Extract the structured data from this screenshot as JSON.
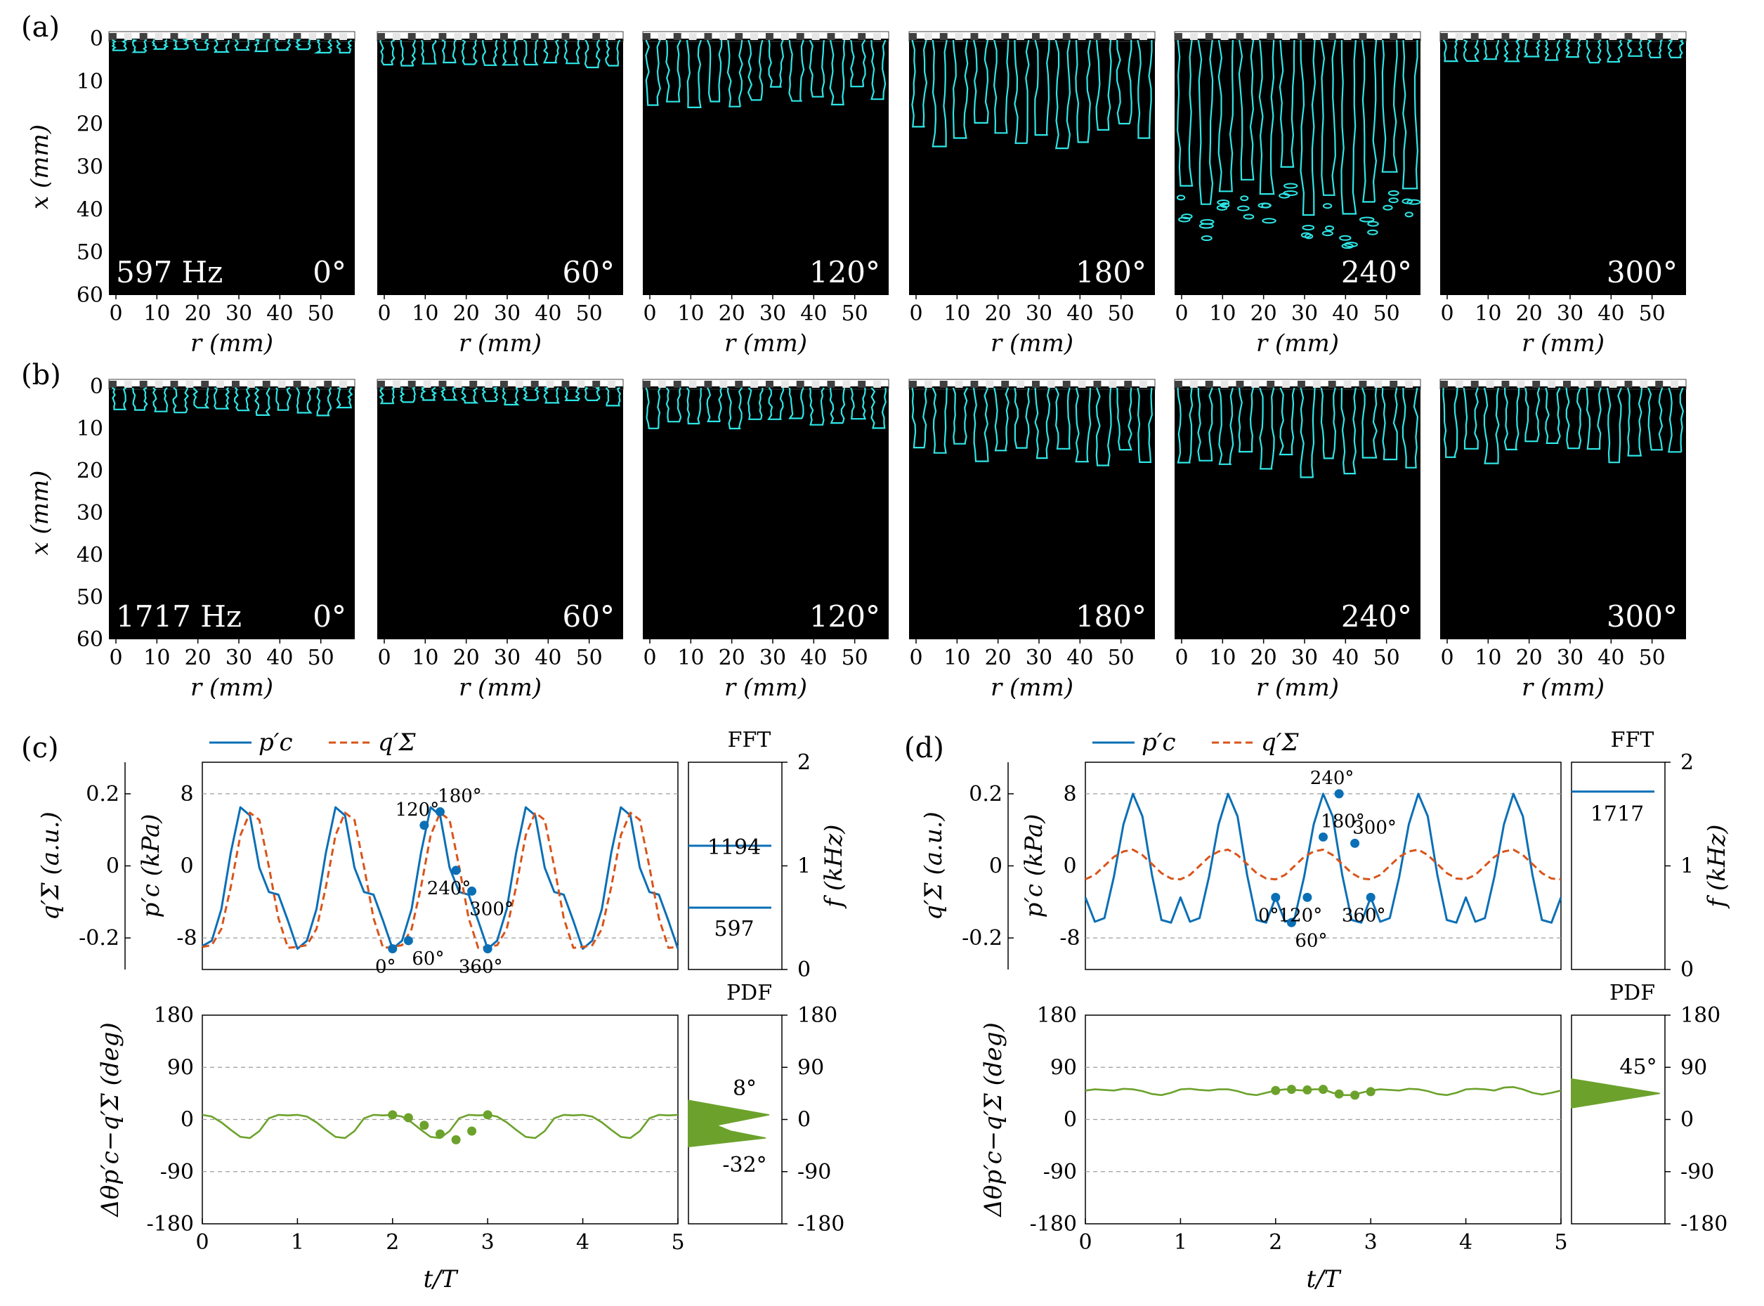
{
  "figure": {
    "panel_labels": [
      "(a)",
      "(b)",
      "(c)",
      "(d)"
    ]
  },
  "flame_rows": [
    {
      "panel": "(a)",
      "frequency_label": "597 Hz",
      "phases": [
        "0°",
        "60°",
        "120°",
        "180°",
        "240°",
        "300°"
      ],
      "flame_length_mm": [
        3,
        6,
        14,
        24,
        36,
        5
      ],
      "y_axis_label": "x (mm)",
      "x_axis_label": "r (mm)",
      "x_ticks": [
        "0",
        "10",
        "20",
        "30",
        "40",
        "50"
      ],
      "y_ticks": [
        "0",
        "10",
        "20",
        "30",
        "40",
        "50",
        "60"
      ]
    },
    {
      "panel": "(b)",
      "frequency_label": "1717 Hz",
      "phases": [
        "0°",
        "60°",
        "120°",
        "180°",
        "240°",
        "300°"
      ],
      "flame_length_mm": [
        6,
        4,
        9,
        17,
        19,
        16
      ],
      "y_axis_label": "x (mm)",
      "x_axis_label": "r (mm)",
      "x_ticks": [
        "0",
        "10",
        "20",
        "30",
        "40",
        "50"
      ],
      "y_ticks": [
        "0",
        "10",
        "20",
        "30",
        "40",
        "50",
        "60"
      ]
    }
  ],
  "colors": {
    "flame_edge": "#2ee6e6",
    "p_line": "#0b6fb6",
    "q_line": "#d9541a",
    "phase_line": "#6ca22c",
    "grid": "#9e9e9e",
    "background_black": "#000000"
  },
  "chart_data": [
    {
      "panel": "(c)",
      "type": "line",
      "legend": [
        "p′c",
        "q′Σ"
      ],
      "x_label": "t/T",
      "x_range": [
        0,
        5
      ],
      "x_ticks": [
        "0",
        "1",
        "2",
        "3",
        "4",
        "5"
      ],
      "y_left_outer_label": "q′Σ (a.u.)",
      "y_left_outer_ticks": [
        "0.2",
        "0",
        "-0.2"
      ],
      "y_left_label": "p′c (kPa)",
      "y_left_range": [
        -11.5,
        11.5
      ],
      "y_left_ticks": [
        "8",
        "0",
        "-8"
      ],
      "grid_dashed_at": [
        8,
        -8
      ],
      "series": [
        {
          "name": "p′c",
          "style": "solid",
          "x": [
            0,
            0.1,
            0.2,
            0.3,
            0.4,
            0.5,
            0.6,
            0.7,
            0.8,
            0.9,
            1.0,
            1.1,
            1.2,
            1.3,
            1.4,
            1.5,
            1.6,
            1.7,
            1.8,
            1.9,
            2.0,
            2.1,
            2.2,
            2.3,
            2.4,
            2.5,
            2.6,
            2.7,
            2.8,
            2.9,
            3.0,
            3.1,
            3.2,
            3.3,
            3.4,
            3.5,
            3.6,
            3.7,
            3.8,
            3.9,
            4.0,
            4.1,
            4.2,
            4.3,
            4.4,
            4.5,
            4.6,
            4.7,
            4.8,
            4.9,
            5.0
          ],
          "values": [
            -8.9,
            -8.3,
            -4.8,
            1.5,
            6.5,
            5.6,
            -0.2,
            -2.9,
            -3.2,
            -6.1,
            -9.2,
            -8.3,
            -4.8,
            1.5,
            6.5,
            5.6,
            -0.2,
            -2.9,
            -3.2,
            -6.1,
            -9.2,
            -8.3,
            -4.8,
            1.5,
            6.5,
            5.6,
            -0.2,
            -2.9,
            -3.2,
            -6.1,
            -9.2,
            -8.3,
            -4.8,
            1.5,
            6.5,
            5.6,
            -0.2,
            -2.9,
            -3.2,
            -6.1,
            -9.2,
            -8.3,
            -4.8,
            1.5,
            6.5,
            5.6,
            -0.2,
            -2.9,
            -3.2,
            -6.1,
            -9.2
          ]
        },
        {
          "name": "q′Σ",
          "style": "dashed",
          "x": [
            0,
            0.1,
            0.2,
            0.3,
            0.4,
            0.5,
            0.6,
            0.7,
            0.8,
            0.9,
            1.0,
            1.1,
            1.2,
            1.3,
            1.4,
            1.5,
            1.6,
            1.7,
            1.8,
            1.9,
            2.0,
            2.1,
            2.2,
            2.3,
            2.4,
            2.5,
            2.6,
            2.7,
            2.8,
            2.9,
            3.0,
            3.1,
            3.2,
            3.3,
            3.4,
            3.5,
            3.6,
            3.7,
            3.8,
            3.9,
            4.0,
            4.1,
            4.2,
            4.3,
            4.4,
            4.5,
            4.6,
            4.7,
            4.8,
            4.9,
            5.0
          ],
          "values": [
            -9.0,
            -8.8,
            -7.0,
            -2.3,
            3.4,
            5.9,
            5.1,
            -0.1,
            -5.8,
            -9.1,
            -9.0,
            -8.8,
            -7.0,
            -2.3,
            3.4,
            5.9,
            5.1,
            -0.1,
            -5.8,
            -9.1,
            -9.0,
            -8.8,
            -7.0,
            -2.3,
            3.4,
            5.9,
            5.1,
            -0.1,
            -5.8,
            -9.1,
            -9.0,
            -8.8,
            -7.0,
            -2.3,
            3.4,
            5.9,
            5.1,
            -0.1,
            -5.8,
            -9.1,
            -9.0,
            -8.8,
            -7.0,
            -2.3,
            3.4,
            5.9,
            5.1,
            -0.1,
            -5.8,
            -9.1,
            -9.0
          ]
        }
      ],
      "phase_markers": {
        "x": [
          2.0,
          2.167,
          2.333,
          2.5,
          2.667,
          2.833,
          3.0
        ],
        "labels": [
          "0°",
          "60°",
          "120°",
          "180°",
          "240°",
          "300°",
          "360°"
        ],
        "values": [
          -9.2,
          -8.3,
          4.5,
          6.0,
          -0.5,
          -2.8,
          -9.2
        ]
      },
      "fft": {
        "title": "FFT",
        "y_label": "f (kHz)",
        "y_range": [
          0,
          2
        ],
        "y_ticks": [
          "0",
          "1",
          "2"
        ],
        "peaks_hz": [
          597,
          1194
        ],
        "peak_labels": [
          "597",
          "1194"
        ]
      },
      "phase_difference": {
        "y_label": "Δθp′c−q′Σ (deg)",
        "y_range": [
          -180,
          180
        ],
        "y_ticks": [
          "180",
          "90",
          "0",
          "-90",
          "-180"
        ],
        "grid_dashed_at": [
          90,
          0,
          -90
        ],
        "series_name": "",
        "x": [
          0,
          0.1,
          0.2,
          0.3,
          0.4,
          0.5,
          0.6,
          0.7,
          0.8,
          0.9,
          1.0,
          1.1,
          1.2,
          1.3,
          1.4,
          1.5,
          1.6,
          1.7,
          1.8,
          1.9,
          2.0,
          2.1,
          2.2,
          2.3,
          2.4,
          2.5,
          2.6,
          2.7,
          2.8,
          2.9,
          3.0,
          3.1,
          3.2,
          3.3,
          3.4,
          3.5,
          3.6,
          3.7,
          3.8,
          3.9,
          4.0,
          4.1,
          4.2,
          4.3,
          4.4,
          4.5,
          4.6,
          4.7,
          4.8,
          4.9,
          5.0
        ],
        "values": [
          8,
          5,
          -5,
          -18,
          -30,
          -32,
          -20,
          2,
          8,
          7,
          8,
          5,
          -5,
          -18,
          -30,
          -32,
          -20,
          2,
          8,
          7,
          8,
          5,
          -5,
          -18,
          -30,
          -32,
          -20,
          2,
          8,
          7,
          8,
          5,
          -5,
          -18,
          -30,
          -32,
          -20,
          2,
          8,
          7,
          8,
          5,
          -5,
          -18,
          -30,
          -32,
          -20,
          2,
          8,
          7,
          8
        ],
        "marker_x": [
          2.0,
          2.167,
          2.333,
          2.5,
          2.667,
          2.833,
          3.0
        ],
        "marker_values": [
          8,
          3,
          -10,
          -25,
          -35,
          -20,
          8
        ],
        "pdf": {
          "title": "PDF",
          "peak_labels": [
            "8°",
            "-32°"
          ],
          "peaks_deg": [
            8,
            -32
          ]
        }
      }
    },
    {
      "panel": "(d)",
      "type": "line",
      "legend": [
        "p′c",
        "q′Σ"
      ],
      "x_label": "t/T",
      "x_range": [
        0,
        5
      ],
      "x_ticks": [
        "0",
        "1",
        "2",
        "3",
        "4",
        "5"
      ],
      "y_left_outer_label": "q′Σ (a.u.)",
      "y_left_outer_ticks": [
        "0.2",
        "0",
        "-0.2"
      ],
      "y_left_label": "p′c (kPa)",
      "y_left_range": [
        -11.5,
        11.5
      ],
      "y_left_ticks": [
        "8",
        "0",
        "-8"
      ],
      "grid_dashed_at": [
        8,
        -8
      ],
      "series": [
        {
          "name": "p′c",
          "style": "solid",
          "x": [
            0,
            0.1,
            0.2,
            0.3,
            0.4,
            0.5,
            0.6,
            0.7,
            0.8,
            0.9,
            1.0,
            1.1,
            1.2,
            1.3,
            1.4,
            1.5,
            1.6,
            1.7,
            1.8,
            1.9,
            2.0,
            2.1,
            2.2,
            2.3,
            2.4,
            2.5,
            2.6,
            2.7,
            2.8,
            2.9,
            3.0,
            3.1,
            3.2,
            3.3,
            3.4,
            3.5,
            3.6,
            3.7,
            3.8,
            3.9,
            4.0,
            4.1,
            4.2,
            4.3,
            4.4,
            4.5,
            4.6,
            4.7,
            4.8,
            4.9,
            5.0
          ],
          "values": [
            -3.5,
            -6.2,
            -5.8,
            -1.2,
            4.6,
            8.0,
            5.5,
            -1.0,
            -6.0,
            -6.3,
            -3.5,
            -6.2,
            -5.8,
            -1.2,
            4.6,
            8.0,
            5.5,
            -1.0,
            -6.0,
            -6.3,
            -3.5,
            -6.2,
            -5.8,
            -1.2,
            4.6,
            8.0,
            5.5,
            -1.0,
            -6.0,
            -6.3,
            -3.5,
            -6.2,
            -5.8,
            -1.2,
            4.6,
            8.0,
            5.5,
            -1.0,
            -6.0,
            -6.3,
            -3.5,
            -6.2,
            -5.8,
            -1.2,
            4.6,
            8.0,
            5.5,
            -1.0,
            -6.0,
            -6.3,
            -3.5
          ]
        },
        {
          "name": "q′Σ",
          "style": "dashed",
          "x": [
            0,
            0.1,
            0.2,
            0.3,
            0.4,
            0.5,
            0.6,
            0.7,
            0.8,
            0.9,
            1.0,
            1.1,
            1.2,
            1.3,
            1.4,
            1.5,
            1.6,
            1.7,
            1.8,
            1.9,
            2.0,
            2.1,
            2.2,
            2.3,
            2.4,
            2.5,
            2.6,
            2.7,
            2.8,
            2.9,
            3.0,
            3.1,
            3.2,
            3.3,
            3.4,
            3.5,
            3.6,
            3.7,
            3.8,
            3.9,
            4.0,
            4.1,
            4.2,
            4.3,
            4.4,
            4.5,
            4.6,
            4.7,
            4.8,
            4.9,
            5.0
          ],
          "values": [
            -1.5,
            -1.0,
            0.0,
            1.0,
            1.6,
            1.8,
            1.2,
            0.2,
            -0.8,
            -1.4,
            -1.5,
            -1.0,
            0.0,
            1.0,
            1.6,
            1.8,
            1.2,
            0.2,
            -0.8,
            -1.4,
            -1.5,
            -1.0,
            0.0,
            1.0,
            1.6,
            1.8,
            1.2,
            0.2,
            -0.8,
            -1.4,
            -1.5,
            -1.0,
            0.0,
            1.0,
            1.6,
            1.8,
            1.2,
            0.2,
            -0.8,
            -1.4,
            -1.5,
            -1.0,
            0.0,
            1.0,
            1.6,
            1.8,
            1.2,
            0.2,
            -0.8,
            -1.4,
            -1.5
          ]
        }
      ],
      "phase_markers": {
        "x": [
          2.0,
          2.167,
          2.333,
          2.5,
          2.667,
          2.833,
          3.0
        ],
        "labels": [
          "0°",
          "60°",
          "120°",
          "180°",
          "240°",
          "300°",
          "360°"
        ],
        "values": [
          -3.5,
          -6.3,
          -3.5,
          3.2,
          8.0,
          2.5,
          -3.5
        ]
      },
      "fft": {
        "title": "FFT",
        "y_label": "f (kHz)",
        "y_range": [
          0,
          2
        ],
        "y_ticks": [
          "0",
          "1",
          "2"
        ],
        "peaks_hz": [
          1717
        ],
        "peak_labels": [
          "1717"
        ]
      },
      "phase_difference": {
        "y_label": "Δθp′c−q′Σ (deg)",
        "y_range": [
          -180,
          180
        ],
        "y_ticks": [
          "180",
          "90",
          "0",
          "-90",
          "-180"
        ],
        "grid_dashed_at": [
          90,
          0,
          -90
        ],
        "series_name": "",
        "x": [
          0,
          0.1,
          0.2,
          0.3,
          0.4,
          0.5,
          0.6,
          0.7,
          0.8,
          0.9,
          1.0,
          1.1,
          1.2,
          1.3,
          1.4,
          1.5,
          1.6,
          1.7,
          1.8,
          1.9,
          2.0,
          2.1,
          2.2,
          2.3,
          2.4,
          2.5,
          2.6,
          2.7,
          2.8,
          2.9,
          3.0,
          3.1,
          3.2,
          3.3,
          3.4,
          3.5,
          3.6,
          3.7,
          3.8,
          3.9,
          4.0,
          4.1,
          4.2,
          4.3,
          4.4,
          4.5,
          4.6,
          4.7,
          4.8,
          4.9,
          5.0
        ],
        "values": [
          50,
          52,
          51,
          50,
          53,
          52,
          49,
          44,
          42,
          46,
          52,
          53,
          51,
          50,
          52,
          52,
          49,
          44,
          42,
          46,
          50,
          52,
          51,
          50,
          52,
          52,
          46,
          42,
          42,
          46,
          50,
          52,
          51,
          50,
          53,
          52,
          49,
          44,
          42,
          46,
          52,
          53,
          52,
          50,
          55,
          56,
          52,
          46,
          43,
          46,
          50
        ],
        "marker_x": [
          2.0,
          2.167,
          2.333,
          2.5,
          2.667,
          2.833,
          3.0
        ],
        "marker_values": [
          50,
          52,
          51,
          52,
          44,
          42,
          48
        ],
        "pdf": {
          "title": "PDF",
          "peak_labels": [
            "45°"
          ],
          "peaks_deg": [
            45
          ]
        }
      }
    }
  ]
}
